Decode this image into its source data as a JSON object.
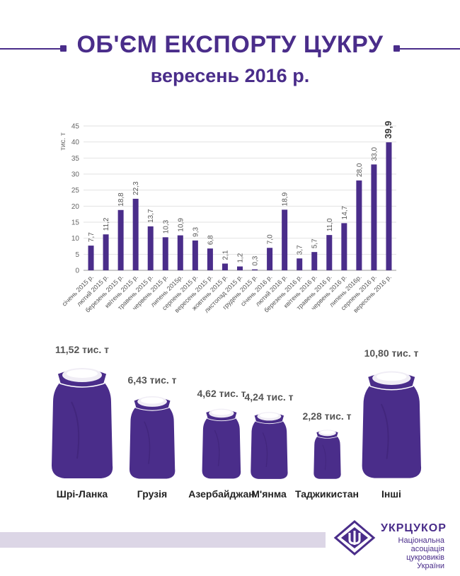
{
  "header": {
    "title": "ОБ'ЄМ ЕКСПОРТУ ЦУКРУ",
    "subtitle": "вересень 2016 р."
  },
  "colors": {
    "primary": "#4a2d8a",
    "footer_band": "#dcd6e6"
  },
  "chart_data": {
    "type": "bar",
    "ylabel": "тис. т",
    "ylim": [
      0,
      45
    ],
    "yticks": [
      0,
      5,
      10,
      15,
      20,
      25,
      30,
      35,
      40,
      45
    ],
    "grid": true,
    "categories": [
      "січень 2015 р.",
      "лютий 2015 р.",
      "березень 2015 р.",
      "квітень 2015 р.",
      "травень 2015 р.",
      "червень 2015 р.",
      "липень 2015р.",
      "серпень 2015 р.",
      "вересень 2015 р.",
      "жовтень 2015 р.",
      "листопад 2015 р.",
      "грудень 2015 р.",
      "січень 2016 р.",
      "лютий 2016 р.",
      "березень 2016 р.",
      "квітень 2016 р.",
      "травень 2016 р.",
      "червень 2016 р.",
      "липень 2016р.",
      "серпень 2016 р.",
      "вересень 2016 р."
    ],
    "values": [
      7.7,
      11.2,
      18.8,
      22.3,
      13.7,
      10.3,
      10.9,
      9.3,
      6.8,
      2.1,
      1.2,
      0.3,
      7.0,
      18.9,
      3.7,
      5.7,
      11.0,
      14.7,
      28.0,
      33.0,
      39.9
    ],
    "value_labels": [
      "7,7",
      "11,2",
      "18,8",
      "22,3",
      "13,7",
      "10,3",
      "10,9",
      "9,3",
      "6,8",
      "2,1",
      "1,2",
      "0,3",
      "7,0",
      "18,9",
      "3,7",
      "5,7",
      "11,0",
      "14,7",
      "28,0",
      "33,0",
      "39,9"
    ]
  },
  "destinations": [
    {
      "country": "Шрі-Ланка",
      "amount": "11,52 тис. т",
      "value": 11.52
    },
    {
      "country": "Грузія",
      "amount": "6,43 тис. т",
      "value": 6.43
    },
    {
      "country": "Азербайджан",
      "amount": "4,62 тис. т",
      "value": 4.62
    },
    {
      "country": "М'янма",
      "amount": "4,24 тис. т",
      "value": 4.24
    },
    {
      "country": "Таджикистан",
      "amount": "2,28 тис. т",
      "value": 2.28
    },
    {
      "country": "Інші",
      "amount": "10,80 тис. т",
      "value": 10.8
    }
  ],
  "footer": {
    "org_name": "УКРЦУКОР",
    "org_desc_1": "Національна",
    "org_desc_2": "асоціація цукровиків",
    "org_desc_3": "України"
  }
}
